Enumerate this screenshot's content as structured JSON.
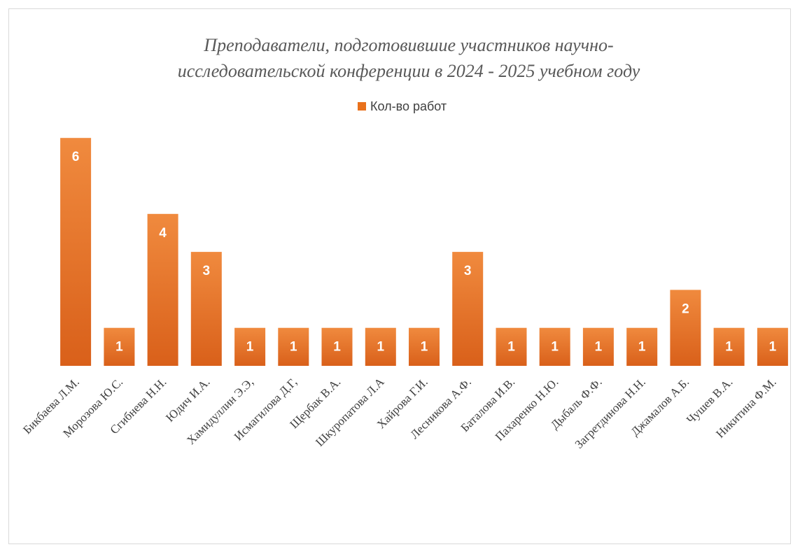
{
  "chart_data": {
    "type": "bar",
    "title_lines": [
      "Преподаватели, подготовившие участников научно-",
      "исследовательской конференции в 2024 - 2025 учебном году"
    ],
    "categories": [
      "Бикбаева Л.М.",
      "Морозова Ю.С.",
      "Сгибнева Н.Н.",
      "Юдич И.А.",
      "Хамидуллин Э.Э,",
      "Исмагилова Д.Г,",
      "Щербак В.А.",
      "Шкуропатова Л.А",
      "Хайрова Г.И.",
      "Лесникова А.Ф.",
      "Баталова И.В.",
      "Пахаренко Н.Ю.",
      "Дыбаль Ф.Ф.",
      "Загретдинова Н.Н.",
      "Джамалов А.Б.",
      "Чушев В.А.",
      "Никитина Ф.М."
    ],
    "series": [
      {
        "name": "Кол-во работ",
        "values": [
          6,
          1,
          4,
          3,
          1,
          1,
          1,
          1,
          1,
          3,
          1,
          1,
          1,
          1,
          2,
          1,
          1
        ]
      }
    ],
    "ylim": [
      0,
      6
    ],
    "grid": false,
    "data_labels": true,
    "legend_position": "top",
    "colors": {
      "bar_top": "#F08A3E",
      "bar_bottom": "#D9601A",
      "legend_swatch": "#E9711C"
    }
  }
}
